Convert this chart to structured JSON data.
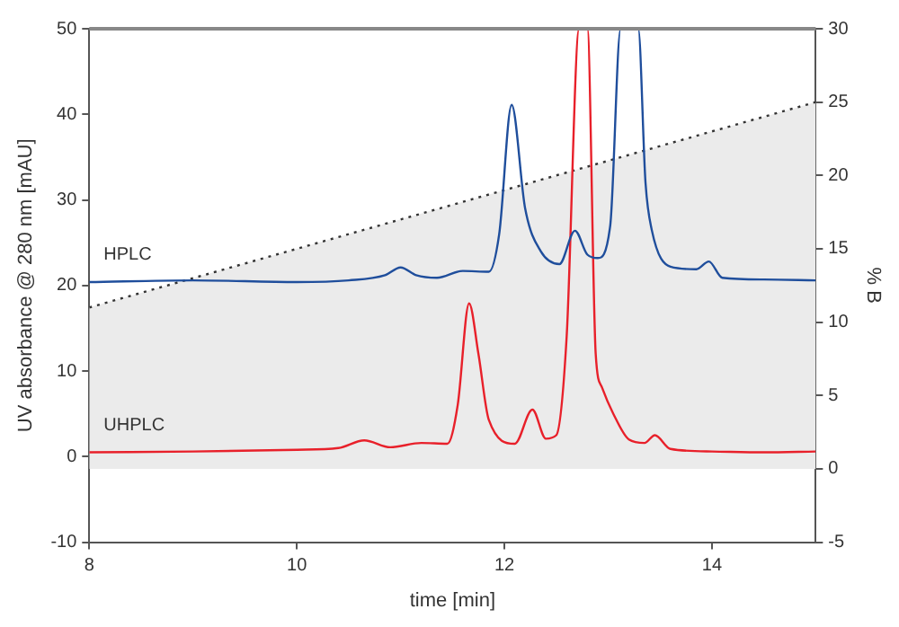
{
  "chart_data": {
    "type": "line",
    "xlabel": "time [min]",
    "ylabel": "UV absorbance @ 280 nm [mAU]",
    "y2label": "% B",
    "xlim": [
      8,
      15
    ],
    "xticks": [
      8,
      10,
      12,
      14
    ],
    "ylim": [
      -10,
      50
    ],
    "yticks": [
      -10,
      0,
      10,
      20,
      30,
      40,
      50
    ],
    "y2lim": [
      -5,
      30
    ],
    "y2ticks": [
      -5,
      0,
      5,
      10,
      15,
      20,
      25,
      30
    ],
    "grid": false,
    "legend": false,
    "marker": "none",
    "series": [
      {
        "type": "area",
        "axis": "y2",
        "color": "#ebebeb",
        "line_style": "dotted",
        "x": [
          8,
          15
        ],
        "values": [
          11,
          25
        ]
      },
      {
        "name": "HPLC",
        "color": "#1f4e9c",
        "x": [
          8,
          9,
          10,
          10.5,
          10.85,
          11,
          11.15,
          11.35,
          11.6,
          11.85,
          11.95,
          12.07,
          12.2,
          12.35,
          12.53,
          12.68,
          12.8,
          12.9,
          13.02,
          13.12,
          13.29,
          13.36,
          13.42,
          13.6,
          13.85,
          13.97,
          14.1,
          14.5,
          15
        ],
        "values": [
          20.4,
          20.6,
          20.4,
          20.6,
          21.2,
          22.1,
          21.2,
          20.9,
          21.7,
          21.6,
          26,
          41.1,
          29,
          24,
          22.5,
          26.4,
          23.6,
          23.2,
          27,
          50,
          50,
          32,
          26.5,
          22.2,
          21.9,
          22.8,
          20.9,
          20.7,
          20.6
        ]
      },
      {
        "name": "UHPLC",
        "color": "#e8202a",
        "x": [
          8,
          9,
          10,
          10.4,
          10.65,
          10.9,
          11.2,
          11.45,
          11.55,
          11.66,
          11.75,
          11.85,
          12.1,
          12.27,
          12.4,
          12.5,
          12.6,
          12.72,
          12.8,
          12.88,
          12.94,
          13.05,
          13.2,
          13.35,
          13.45,
          13.6,
          14,
          14.5,
          15
        ],
        "values": [
          0.5,
          0.6,
          0.8,
          1,
          1.9,
          1.1,
          1.6,
          1.5,
          6,
          17.9,
          12,
          4.3,
          1.5,
          5.5,
          2.1,
          2.5,
          14,
          50,
          50,
          12,
          8.1,
          5,
          2,
          1.6,
          2.5,
          0.9,
          0.6,
          0.5,
          0.6
        ]
      }
    ]
  }
}
